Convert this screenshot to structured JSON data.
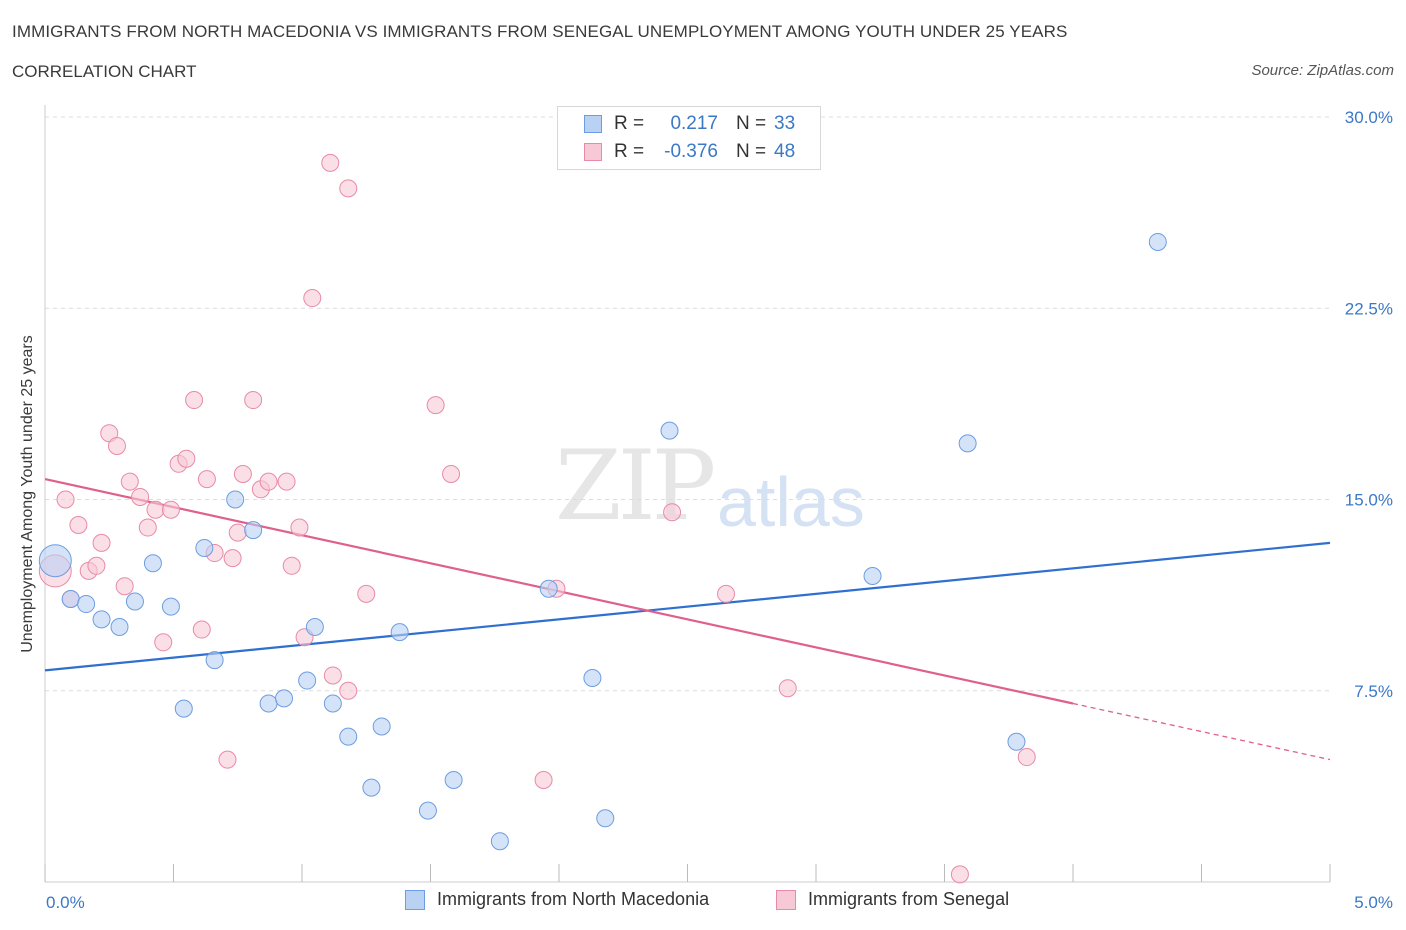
{
  "title": "IMMIGRANTS FROM NORTH MACEDONIA VS IMMIGRANTS FROM SENEGAL UNEMPLOYMENT AMONG YOUTH UNDER 25 YEARS",
  "subtitle": "CORRELATION CHART",
  "source": "Source: ZipAtlas.com",
  "watermark": {
    "zip": "ZIP",
    "atlas": "atlas"
  },
  "legend": {
    "r_label": "R =",
    "n_label": "N =",
    "series": [
      {
        "name": "Immigrants from North Macedonia",
        "r": "0.217",
        "n": "33"
      },
      {
        "name": "Immigrants from Senegal",
        "r": "-0.376",
        "n": "48"
      }
    ]
  },
  "colors": {
    "blue_fill": "#b9d1f3",
    "blue_stroke": "#6d9de0",
    "blue_line": "#2f6fcf",
    "pink_fill": "#f7c9d7",
    "pink_stroke": "#e98aa8",
    "pink_line": "#e0608c",
    "tick_text": "#3b78c5"
  },
  "chart_data": {
    "type": "scatter",
    "title": "IMMIGRANTS FROM NORTH MACEDONIA VS IMMIGRANTS FROM SENEGAL UNEMPLOYMENT AMONG YOUTH UNDER 25 YEARS",
    "xlabel": "",
    "ylabel": "Unemployment Among Youth under 25 years",
    "xlim": [
      0,
      5
    ],
    "ylim": [
      0,
      30
    ],
    "x_tick_labels": [
      "0.0%",
      "5.0%"
    ],
    "y_ticks": [
      7.5,
      15.0,
      22.5,
      30.0
    ],
    "y_tick_labels": [
      "7.5%",
      "15.0%",
      "22.5%",
      "30.0%"
    ],
    "grid": true,
    "series": [
      {
        "name": "Immigrants from North Macedonia",
        "r": 0.217,
        "n": 33,
        "trend": {
          "x": [
            0,
            5
          ],
          "y": [
            8.3,
            13.3
          ],
          "dashed_from": null
        },
        "points": [
          [
            0.04,
            12.6,
            "large"
          ],
          [
            0.1,
            11.1
          ],
          [
            0.16,
            10.9
          ],
          [
            0.22,
            10.3
          ],
          [
            0.29,
            10.0
          ],
          [
            0.35,
            11.0
          ],
          [
            0.42,
            12.5
          ],
          [
            0.49,
            10.8
          ],
          [
            0.54,
            6.8
          ],
          [
            0.62,
            13.1
          ],
          [
            0.66,
            8.7
          ],
          [
            0.74,
            15.0
          ],
          [
            0.81,
            13.8
          ],
          [
            0.87,
            7.0
          ],
          [
            0.93,
            7.2
          ],
          [
            1.02,
            7.9
          ],
          [
            1.05,
            10.0
          ],
          [
            1.12,
            7.0
          ],
          [
            1.18,
            5.7
          ],
          [
            1.27,
            3.7
          ],
          [
            1.31,
            6.1
          ],
          [
            1.38,
            9.8
          ],
          [
            1.49,
            2.8
          ],
          [
            1.59,
            4.0
          ],
          [
            1.77,
            1.6
          ],
          [
            1.96,
            11.5
          ],
          [
            2.13,
            8.0
          ],
          [
            2.18,
            2.5
          ],
          [
            2.43,
            17.7
          ],
          [
            3.22,
            12.0
          ],
          [
            3.59,
            17.2
          ],
          [
            3.78,
            5.5
          ],
          [
            4.33,
            25.1
          ]
        ]
      },
      {
        "name": "Immigrants from Senegal",
        "r": -0.376,
        "n": 48,
        "trend": {
          "x": [
            0,
            5
          ],
          "y": [
            15.8,
            4.8
          ],
          "dashed_from": 4.0
        },
        "points": [
          [
            0.04,
            12.2,
            "large"
          ],
          [
            0.08,
            15.0
          ],
          [
            0.1,
            11.1
          ],
          [
            0.13,
            14.0
          ],
          [
            0.17,
            12.2
          ],
          [
            0.2,
            12.4
          ],
          [
            0.22,
            13.3
          ],
          [
            0.25,
            17.6
          ],
          [
            0.28,
            17.1
          ],
          [
            0.31,
            11.6
          ],
          [
            0.33,
            15.7
          ],
          [
            0.37,
            15.1
          ],
          [
            0.4,
            13.9
          ],
          [
            0.43,
            14.6
          ],
          [
            0.46,
            9.4
          ],
          [
            0.49,
            14.6
          ],
          [
            0.52,
            16.4
          ],
          [
            0.55,
            16.6
          ],
          [
            0.58,
            18.9
          ],
          [
            0.61,
            9.9
          ],
          [
            0.63,
            15.8
          ],
          [
            0.66,
            12.9
          ],
          [
            0.71,
            4.8
          ],
          [
            0.73,
            12.7
          ],
          [
            0.75,
            13.7
          ],
          [
            0.77,
            16.0
          ],
          [
            0.81,
            18.9
          ],
          [
            0.84,
            15.4
          ],
          [
            0.87,
            15.7
          ],
          [
            0.94,
            15.7
          ],
          [
            0.96,
            12.4
          ],
          [
            0.99,
            13.9
          ],
          [
            1.01,
            9.6
          ],
          [
            1.04,
            22.9
          ],
          [
            1.11,
            28.2
          ],
          [
            1.18,
            27.2
          ],
          [
            1.18,
            7.5
          ],
          [
            1.25,
            11.3
          ],
          [
            1.52,
            18.7
          ],
          [
            1.58,
            16.0
          ],
          [
            1.94,
            4.0
          ],
          [
            1.99,
            11.5
          ],
          [
            2.44,
            14.5
          ],
          [
            2.65,
            11.3
          ],
          [
            2.89,
            7.6
          ],
          [
            3.82,
            4.9
          ],
          [
            3.56,
            0.3
          ],
          [
            1.12,
            8.1
          ]
        ]
      }
    ]
  },
  "y_axis_label": "Unemployment Among Youth under 25 years"
}
